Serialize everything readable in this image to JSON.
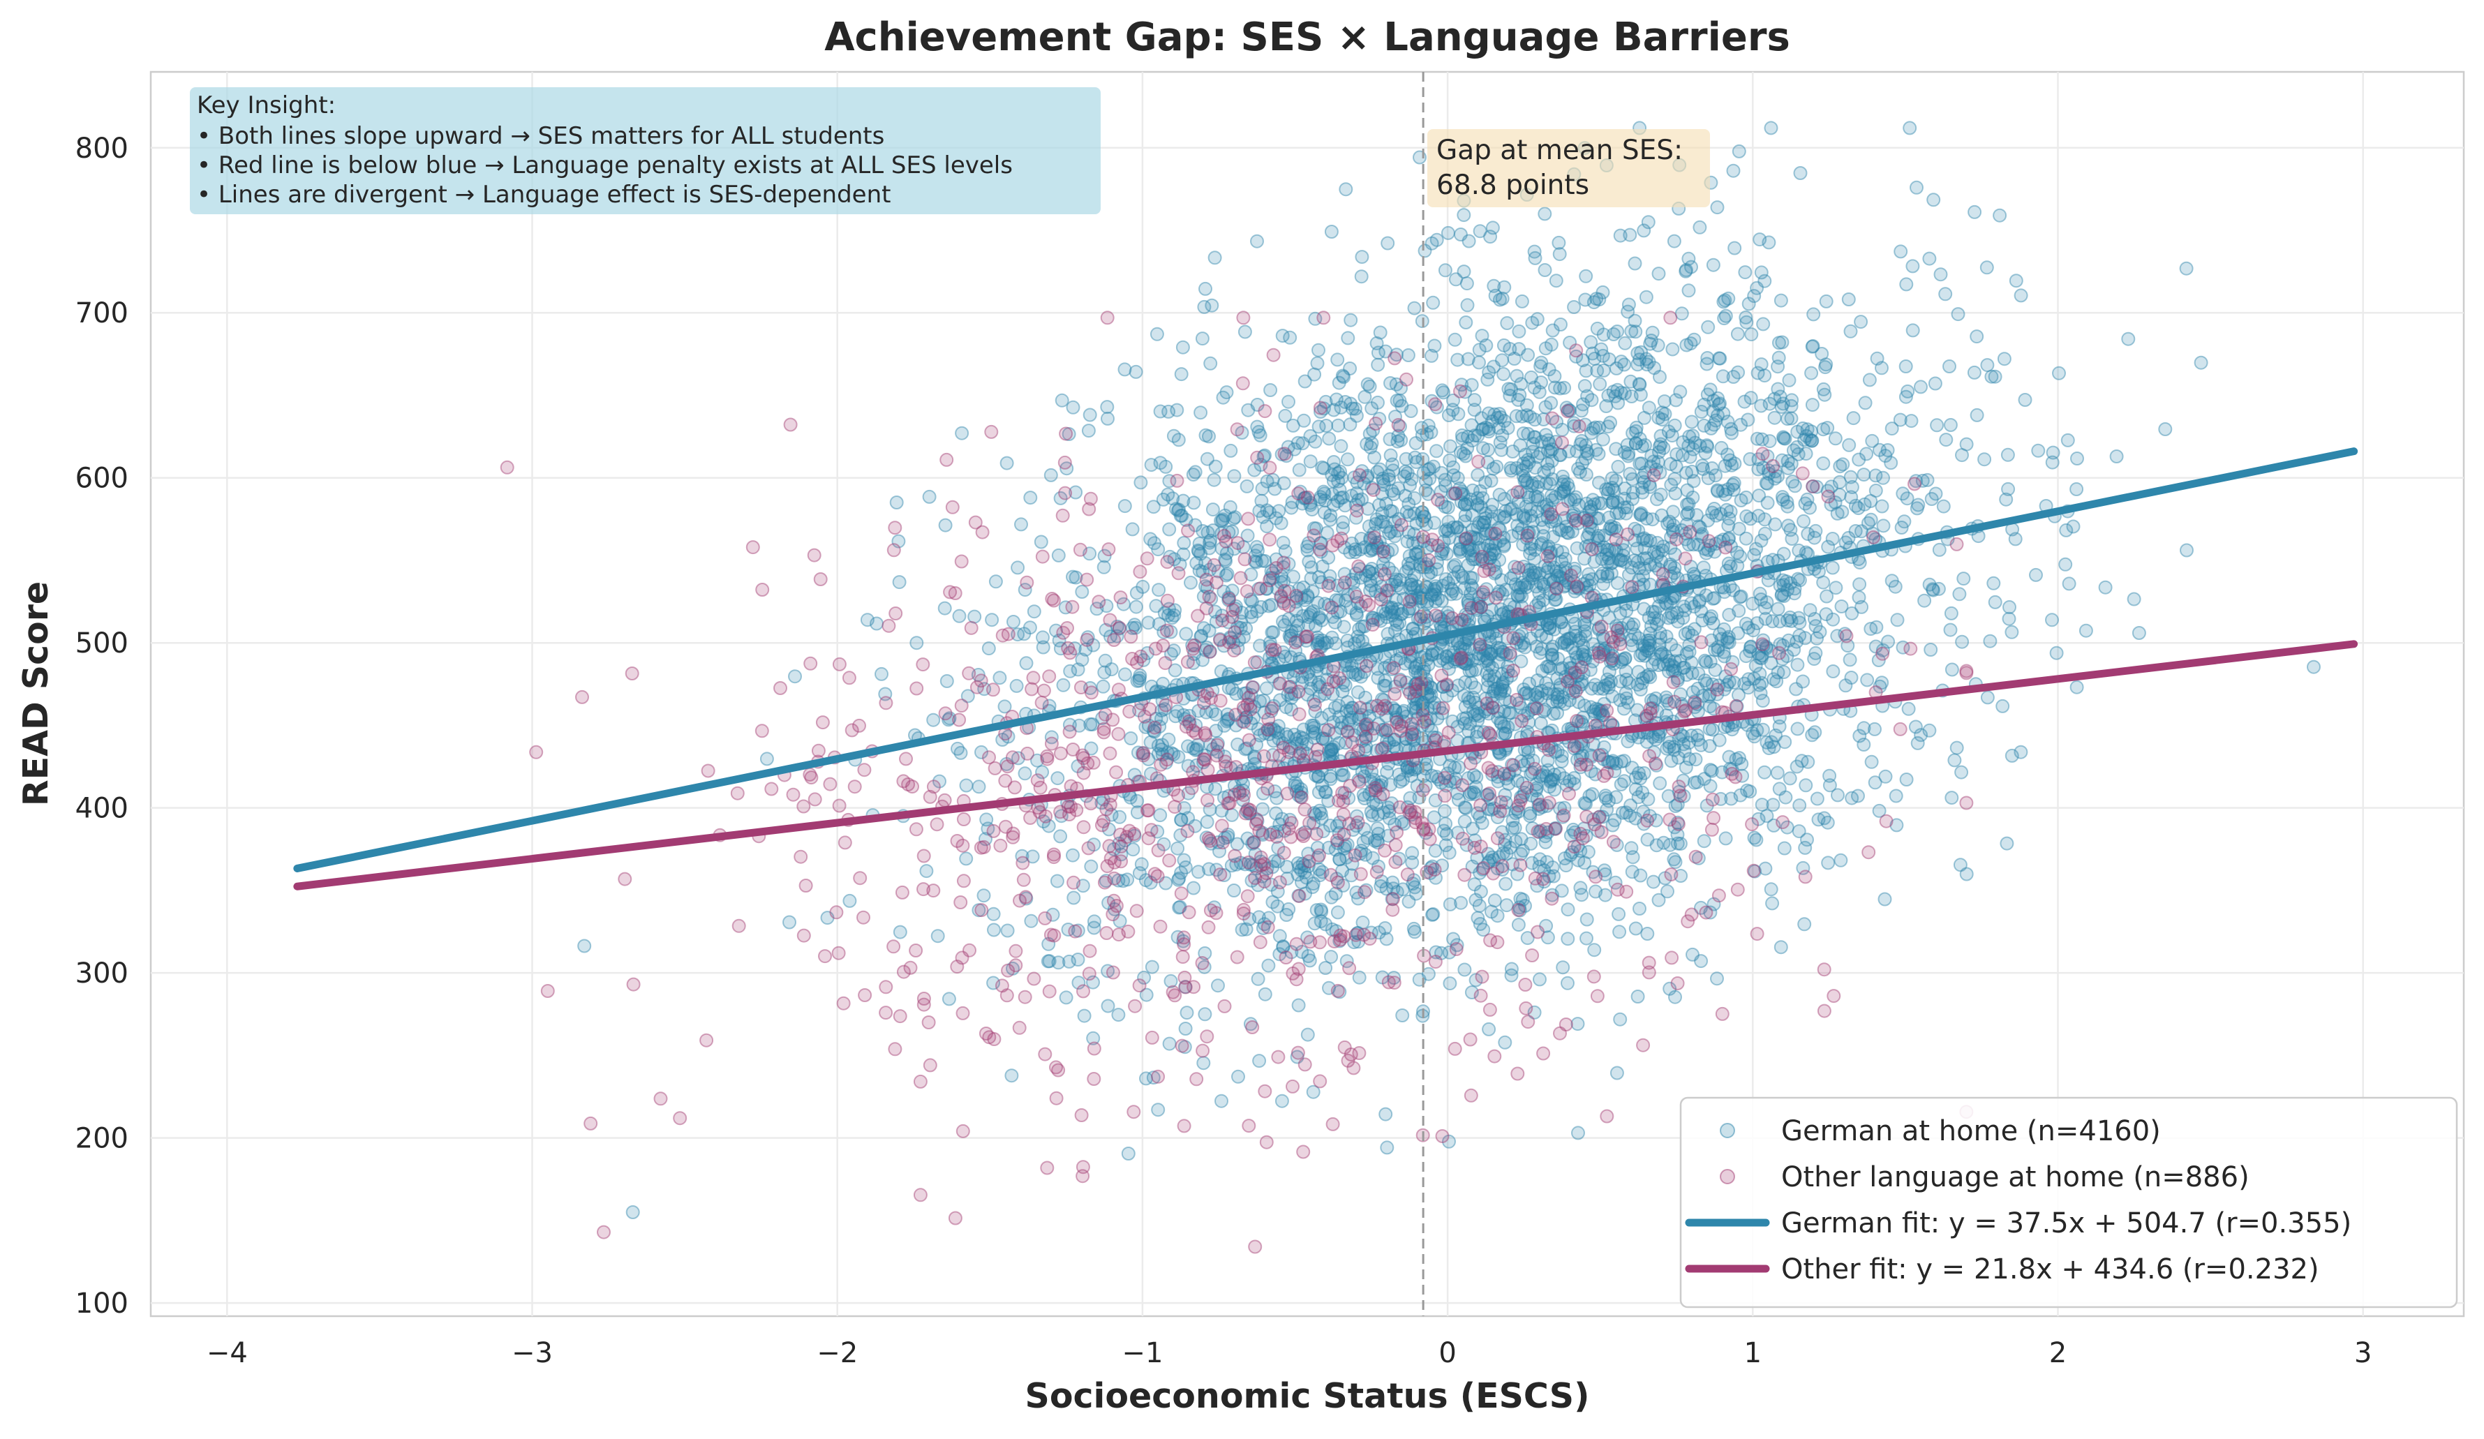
{
  "chart_data": {
    "type": "scatter",
    "title": "Achievement Gap: SES × Language Barriers",
    "xlabel": "Socioeconomic Status (ESCS)",
    "ylabel": "READ Score",
    "xlim": [
      -4.25,
      3.33
    ],
    "ylim": [
      92,
      846
    ],
    "xticks": [
      -4,
      -3,
      -2,
      -1,
      0,
      1,
      2,
      3
    ],
    "xtick_labels": [
      "−4",
      "−3",
      "−2",
      "−1",
      "0",
      "1",
      "2",
      "3"
    ],
    "yticks": [
      100,
      200,
      300,
      400,
      500,
      600,
      700,
      800
    ],
    "ytick_labels": [
      "100",
      "200",
      "300",
      "400",
      "500",
      "600",
      "700",
      "800"
    ],
    "grid": true,
    "legend_position": "bottom-right",
    "series": [
      {
        "name": "German at home (n=4160)",
        "kind": "scatter",
        "color": "#2e86ab",
        "n": 4160,
        "x_mean": 0.15,
        "x_sd": 0.72,
        "x_range": [
          -3.6,
          3.0
        ],
        "fit": {
          "slope": 37.5,
          "intercept": 504.7,
          "r": 0.355
        },
        "y_range": [
          155,
          812
        ]
      },
      {
        "name": "Other language at home (n=886)",
        "kind": "scatter",
        "color": "#a23b72",
        "n": 886,
        "x_mean": -0.55,
        "x_sd": 0.85,
        "x_range": [
          -3.8,
          1.7
        ],
        "fit": {
          "slope": 21.8,
          "intercept": 434.6,
          "r": 0.232
        },
        "y_range": [
          127,
          697
        ]
      },
      {
        "name": "German fit: y = 37.5x + 504.7 (r=0.355)",
        "kind": "line",
        "color": "#2e86ab",
        "x": [
          -3.77,
          2.97
        ],
        "y": [
          363.3,
          616.1
        ]
      },
      {
        "name": "Other fit: y = 21.8x + 434.6 (r=0.232)",
        "kind": "line",
        "color": "#a23b72",
        "x": [
          -3.77,
          2.97
        ],
        "y": [
          352.4,
          499.3
        ]
      }
    ],
    "reference_line": {
      "x": -0.08,
      "style": "dashed",
      "color": "#999999"
    },
    "annotations": [
      {
        "id": "insight",
        "lines": [
          "Key Insight:",
          "• Both lines slope upward → SES matters for ALL students",
          "• Red line is below blue → Language penalty exists at ALL SES levels",
          "• Lines are divergent → Language effect is SES-dependent"
        ],
        "background": "#add8e6"
      },
      {
        "id": "gap",
        "lines": [
          "Gap at mean SES:",
          "68.8 points"
        ],
        "background": "#f5deb3"
      }
    ]
  }
}
